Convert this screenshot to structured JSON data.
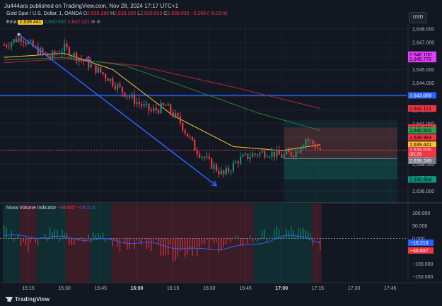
{
  "header": {
    "publish_line": "Ju444ara published on TradingView.com, Nov 28, 2024 17:17 UTC+1"
  },
  "legend_main": {
    "symbol": "Gold Spot / U.S. Dollar, 1, OANDA",
    "open_label": "O",
    "open": "2,639.280",
    "high_label": "H",
    "high": "2,639.300",
    "low_label": "L",
    "low": "2,639.035",
    "close_label": "C",
    "close": "2,639.035",
    "change": "−0.260 (−0.01%)"
  },
  "legend_ema": {
    "name": "Ema",
    "v1": "2,639.441",
    "v2": "2,640.502",
    "v3": "2,642.121"
  },
  "currency_button": "USD",
  "indicator": {
    "name": "Nova Volume Indicator",
    "v1": "−46.837",
    "v2": "−16.213"
  },
  "colors": {
    "bg": "#131722",
    "up": "#089981",
    "down": "#f23645",
    "ema_fast": "#f7c531",
    "ema_mid": "#2e7d32",
    "ema_slow": "#b22833",
    "hline": "#2962ff"
  },
  "price_axis": {
    "ticks": [
      {
        "label": "2,648.000",
        "value": 2648
      },
      {
        "label": "2,647.000",
        "value": 2647
      },
      {
        "label": "2,646.000",
        "value": 2646
      },
      {
        "label": "2,645.000",
        "value": 2645
      },
      {
        "label": "2,644.000",
        "value": 2644
      },
      {
        "label": "2,643.000",
        "value": 2643
      },
      {
        "label": "2,642.000",
        "value": 2642
      },
      {
        "label": "2,641.000",
        "value": 2641
      },
      {
        "label": "2,640.000",
        "value": 2640
      },
      {
        "label": "2,639.000",
        "value": 2639
      },
      {
        "label": "2,638.000",
        "value": 2638
      },
      {
        "label": "2,637.000",
        "value": 2637
      },
      {
        "label": "2,636.000",
        "value": 2636
      }
    ],
    "badges": [
      {
        "label": "2,646.100",
        "value": 2646.1,
        "color": "#e040fb",
        "text": "#000000"
      },
      {
        "label": "2,645.770",
        "value": 2645.77,
        "color": "#e040fb",
        "text": "#000000"
      },
      {
        "label": "2,643.089",
        "value": 2643.089,
        "color": "#2962ff",
        "text": "#ffffff"
      },
      {
        "label": "2,642.121",
        "value": 2642.121,
        "color": "#f23645",
        "text": "#000000"
      },
      {
        "label": "2,640.713",
        "value": 2640.713,
        "color": "#f23645",
        "text": "#000000"
      },
      {
        "label": "2,640.502",
        "value": 2640.502,
        "color": "#2e9e4f",
        "text": "#000000"
      },
      {
        "label": "2,639.983",
        "value": 2639.983,
        "color": "#f23645",
        "text": "#000000"
      },
      {
        "label": "2,639.441",
        "value": 2639.441,
        "color": "#f7c531",
        "text": "#000000"
      },
      {
        "label": "2,638.415",
        "value": 2638.415,
        "color": "#787b86",
        "text": "#ffffff"
      },
      {
        "label": "2,639.035",
        "value": 2639.035,
        "color": "#f23645",
        "text": "#ffffff"
      },
      {
        "label": "00:26",
        "value": 2638.75,
        "color": "#f23645",
        "text": "#ffffff"
      },
      {
        "label": "2,638.249",
        "value": 2638.249,
        "color": "#787b86",
        "text": "#ffffff"
      },
      {
        "label": "2,636.864",
        "value": 2636.864,
        "color": "#089981",
        "text": "#000000"
      }
    ]
  },
  "indicator_axis": {
    "ticks": [
      {
        "label": "100.000",
        "value": 100
      },
      {
        "label": "50.000",
        "value": 50
      },
      {
        "label": "0.000",
        "value": 0
      },
      {
        "label": "−50.000",
        "value": -50
      },
      {
        "label": "−100.000",
        "value": -100
      },
      {
        "label": "−150.000",
        "value": -150
      }
    ],
    "badges": [
      {
        "label": "−16.213",
        "value": -16.213,
        "color": "#2962ff",
        "text": "#ffffff"
      },
      {
        "label": "−46.837",
        "value": -46.837,
        "color": "#f23645",
        "text": "#ffffff"
      }
    ]
  },
  "time_axis": {
    "ticks": [
      {
        "label": "15:15",
        "min": 915
      },
      {
        "label": "15:30",
        "min": 930
      },
      {
        "label": "15:45",
        "min": 945
      },
      {
        "label": "16:00",
        "min": 960,
        "bold": true
      },
      {
        "label": "16:15",
        "min": 975
      },
      {
        "label": "16:30",
        "min": 990
      },
      {
        "label": "16:45",
        "min": 1005
      },
      {
        "label": "17:00",
        "min": 1020,
        "bold": true
      },
      {
        "label": "17:15",
        "min": 1035
      },
      {
        "label": "17:30",
        "min": 1050
      },
      {
        "label": "17:45",
        "min": 1065
      }
    ]
  },
  "footer": {
    "brand": "TradingView"
  },
  "chart_data": {
    "type": "candlestick",
    "symbol": "Gold Spot / U.S. Dollar, 1, OANDA",
    "x_start_minute": 905,
    "ohlc_keypoints": [
      [
        905,
        2646.8
      ],
      [
        912,
        2647.4
      ],
      [
        918,
        2646.5
      ],
      [
        924,
        2645.9
      ],
      [
        930,
        2646.6
      ],
      [
        936,
        2645.8
      ],
      [
        942,
        2645.2
      ],
      [
        948,
        2644.4
      ],
      [
        954,
        2643.4
      ],
      [
        960,
        2642.6
      ],
      [
        966,
        2641.9
      ],
      [
        972,
        2642.3
      ],
      [
        978,
        2641.1
      ],
      [
        984,
        2639.2
      ],
      [
        990,
        2638.1
      ],
      [
        996,
        2637.2
      ],
      [
        1002,
        2638.3
      ],
      [
        1008,
        2638.7
      ],
      [
        1014,
        2638.9
      ],
      [
        1020,
        2638.6
      ],
      [
        1026,
        2638.9
      ],
      [
        1030,
        2639.9
      ],
      [
        1033,
        2639.5
      ],
      [
        1036,
        2639.04
      ]
    ],
    "horizontal_line": 2643.089,
    "trend_line": {
      "from": [
        911,
        2647.6
      ],
      "to": [
        993,
        2636.4
      ]
    },
    "ema_fast": [
      [
        905,
        2645.9
      ],
      [
        930,
        2646.2
      ],
      [
        950,
        2645.0
      ],
      [
        975,
        2641.6
      ],
      [
        1000,
        2639.3
      ],
      [
        1020,
        2639.0
      ],
      [
        1036,
        2639.44
      ]
    ],
    "ema_mid": [
      [
        905,
        2645.7
      ],
      [
        930,
        2645.9
      ],
      [
        955,
        2645.3
      ],
      [
        985,
        2643.4
      ],
      [
        1010,
        2641.8
      ],
      [
        1036,
        2640.5
      ]
    ],
    "ema_slow": [
      [
        905,
        2645.5
      ],
      [
        930,
        2645.8
      ],
      [
        960,
        2645.3
      ],
      [
        1000,
        2643.7
      ],
      [
        1036,
        2642.12
      ]
    ],
    "positions": [
      {
        "type": "sell",
        "x_from": 1021,
        "x_to": 1068,
        "entry": 2638.415,
        "stop": 2640.713,
        "target": 2636.864
      }
    ],
    "indicator": {
      "name": "Nova Volume Indicator",
      "range": [
        -160,
        120
      ],
      "keypoints": [
        [
          905,
          35
        ],
        [
          915,
          -20
        ],
        [
          925,
          30
        ],
        [
          935,
          -25
        ],
        [
          945,
          20
        ],
        [
          955,
          -30
        ],
        [
          965,
          -15
        ],
        [
          975,
          -60
        ],
        [
          985,
          -40
        ],
        [
          995,
          -25
        ],
        [
          1005,
          -10
        ],
        [
          1015,
          15
        ],
        [
          1025,
          30
        ],
        [
          1032,
          15
        ],
        [
          1036,
          -46.837
        ]
      ],
      "signal_keypoints": [
        [
          905,
          10
        ],
        [
          925,
          5
        ],
        [
          945,
          -5
        ],
        [
          965,
          -20
        ],
        [
          985,
          -45
        ],
        [
          1005,
          -30
        ],
        [
          1020,
          5
        ],
        [
          1030,
          10
        ],
        [
          1036,
          -16.213
        ]
      ]
    }
  }
}
